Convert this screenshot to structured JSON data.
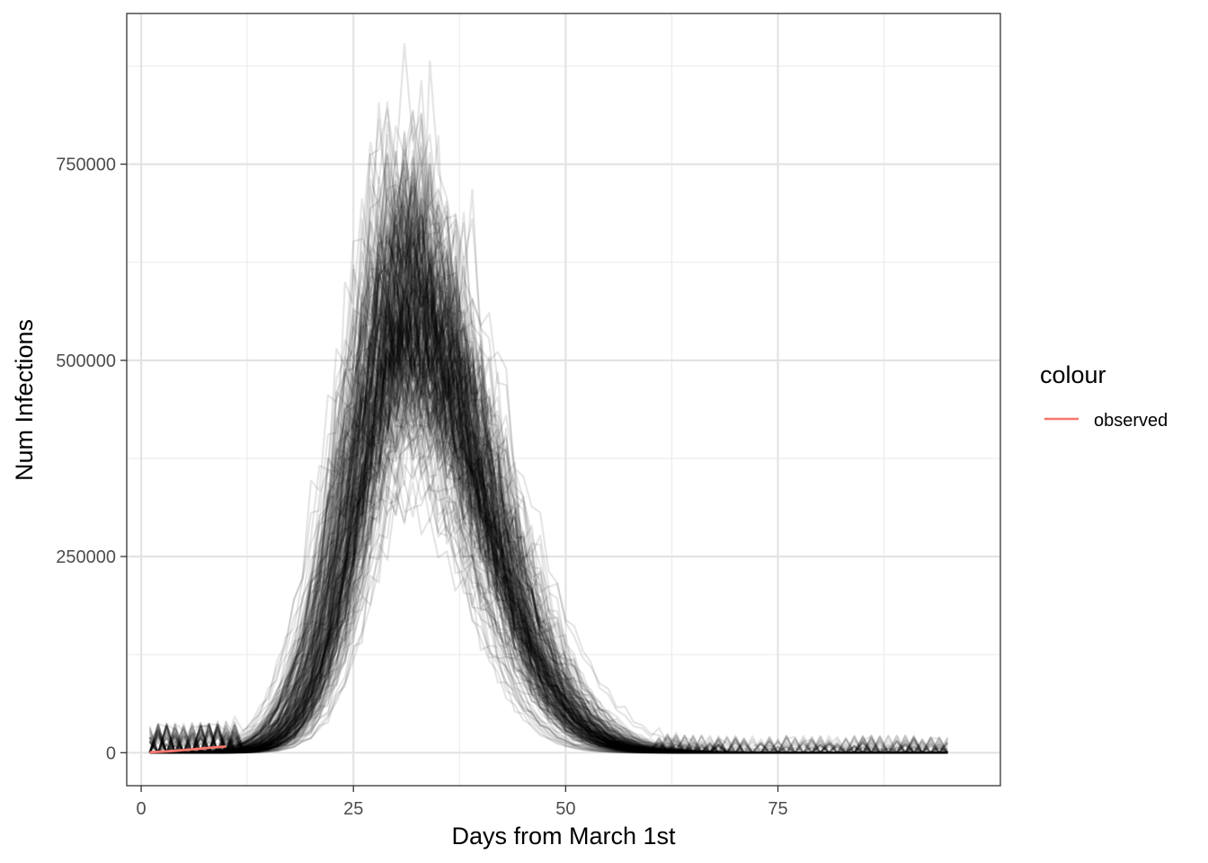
{
  "chart_data": {
    "type": "line",
    "xlabel": "Days from March 1st",
    "ylabel": "Num Infections",
    "xlim": [
      -1.7,
      101.2
    ],
    "ylim": [
      -42000,
      942000
    ],
    "x_ticks": [
      0,
      25,
      50,
      75
    ],
    "x_tick_labels": [
      "0",
      "25",
      "50",
      "75"
    ],
    "y_ticks": [
      0,
      250000,
      500000,
      750000
    ],
    "y_tick_labels": [
      "0",
      "250000",
      "500000",
      "750000"
    ],
    "grid": true,
    "legend": {
      "title": "colour",
      "position": "right",
      "entries": [
        {
          "label": "observed",
          "color": "#F8766D"
        }
      ]
    },
    "simulations": {
      "color": "#000000",
      "alpha": 0.1,
      "x_start": 1,
      "x_end": 95,
      "peak_day": 31,
      "peak_value": 560000,
      "peak_range_max": 900000,
      "peak_range_min": 280000
    },
    "series": [
      {
        "name": "observed",
        "color": "#F8766D",
        "x": [
          1,
          2,
          3,
          4,
          5,
          6,
          7,
          8,
          9,
          10
        ],
        "y": [
          500,
          1200,
          1800,
          2500,
          3400,
          4300,
          5200,
          6200,
          7100,
          8000
        ]
      }
    ]
  }
}
